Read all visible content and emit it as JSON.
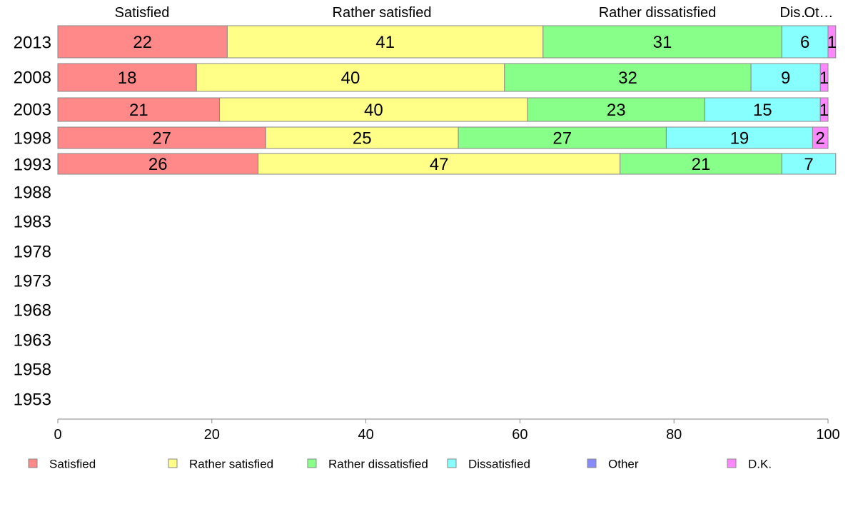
{
  "chart_data": {
    "type": "bar",
    "orientation": "horizontal",
    "stacked": true,
    "title": "",
    "xlabel": "",
    "ylabel": "",
    "xlim": [
      0,
      100
    ],
    "x_ticks": [
      "0",
      "20",
      "40",
      "60",
      "80",
      "100"
    ],
    "grid": false,
    "legend_position": "bottom",
    "categories": [
      "2013",
      "2008",
      "2003",
      "1998",
      "1993",
      "1988",
      "1983",
      "1978",
      "1973",
      "1968",
      "1963",
      "1958",
      "1953"
    ],
    "series": [
      {
        "name": "Satisfied",
        "color": "#ff8888",
        "values": [
          22,
          18,
          21,
          27,
          26,
          null,
          null,
          null,
          null,
          null,
          null,
          null,
          null
        ]
      },
      {
        "name": "Rather satisfied",
        "color": "#ffff88",
        "values": [
          41,
          40,
          40,
          25,
          47,
          null,
          null,
          null,
          null,
          null,
          null,
          null,
          null
        ]
      },
      {
        "name": "Rather dissatisfied",
        "color": "#88ff88",
        "values": [
          31,
          32,
          23,
          27,
          21,
          null,
          null,
          null,
          null,
          null,
          null,
          null,
          null
        ]
      },
      {
        "name": "Dissatisfied",
        "color": "#88ffff",
        "values": [
          6,
          9,
          15,
          19,
          7,
          null,
          null,
          null,
          null,
          null,
          null,
          null,
          null
        ]
      },
      {
        "name": "Other",
        "color": "#8888ff",
        "values": [
          0,
          0,
          0,
          0,
          0,
          null,
          null,
          null,
          null,
          null,
          null,
          null,
          null
        ]
      },
      {
        "name": "D.K.",
        "color": "#ff88ff",
        "values": [
          1,
          1,
          1,
          2,
          0,
          null,
          null,
          null,
          null,
          null,
          null,
          null,
          null
        ]
      }
    ],
    "top_labels": [
      "Satisfied",
      "Rather satisfied",
      "Rather dissatisfied",
      "Dis…",
      "Ot…"
    ]
  }
}
